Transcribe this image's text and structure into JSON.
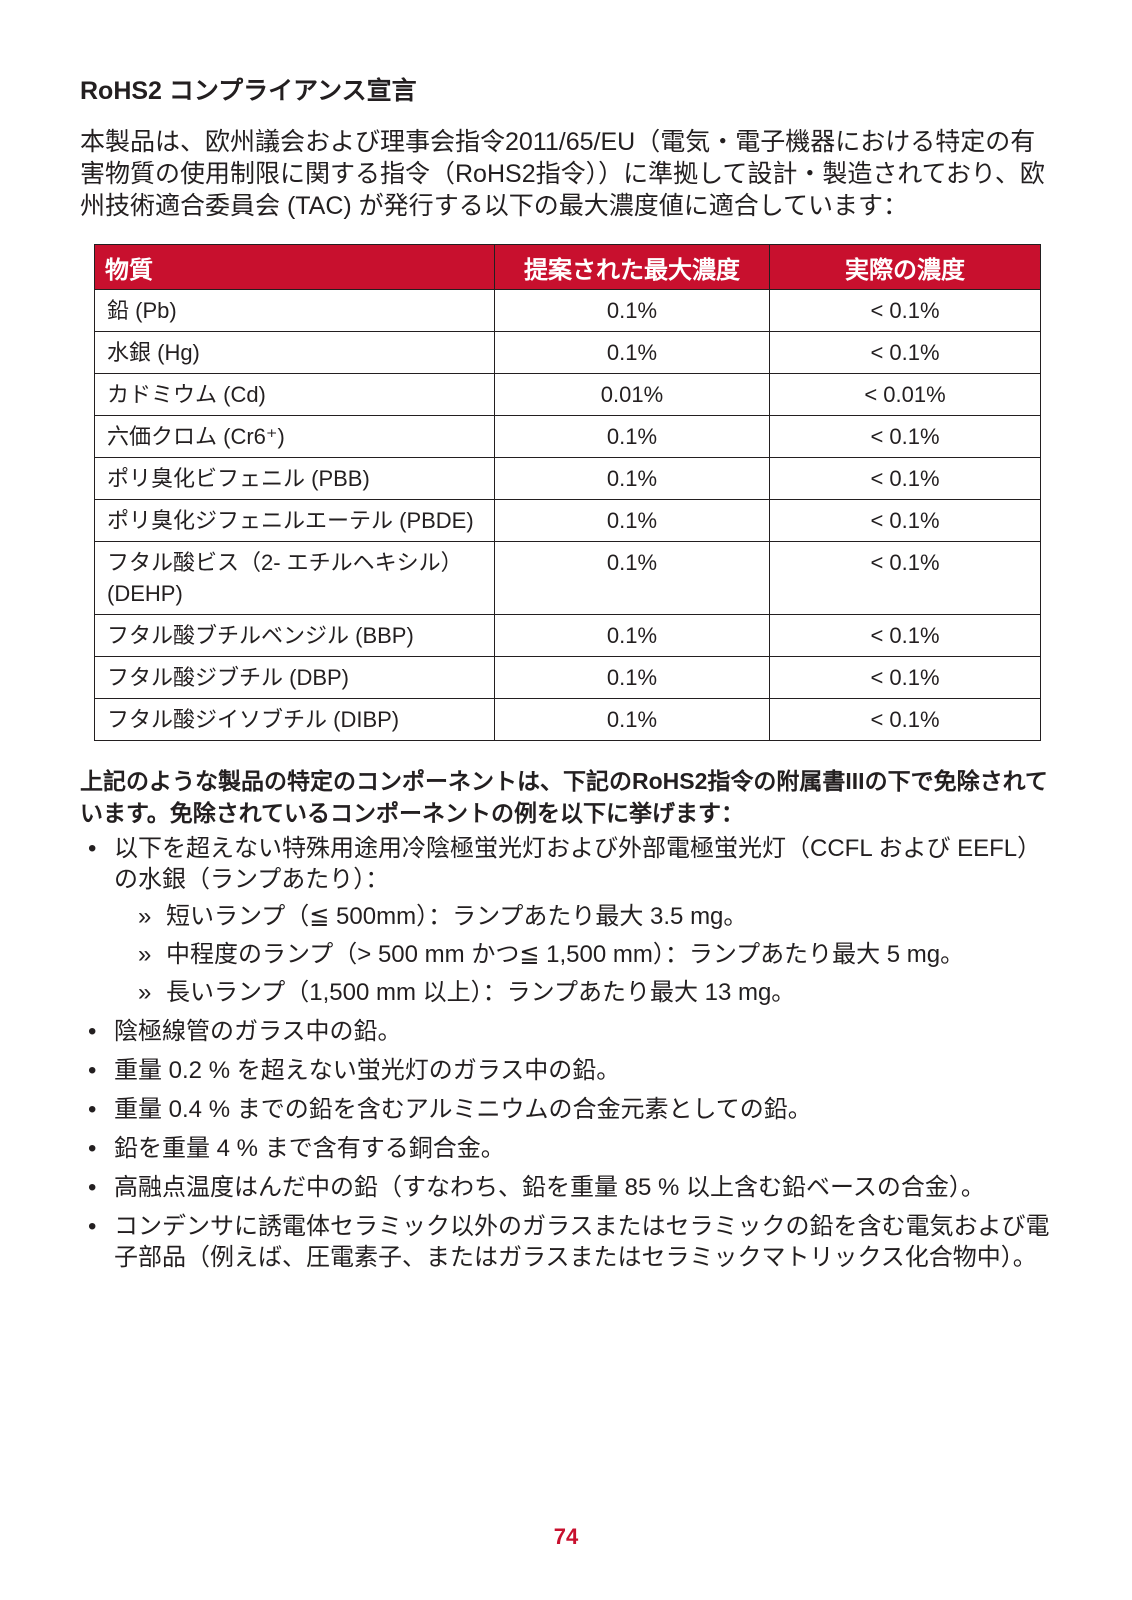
{
  "heading": "RoHS2 コンプライアンス宣言",
  "intro": "本製品は、欧州議会および理事会指令2011/65/EU（電気・電子機器における特定の有害物質の使用制限に関する指令（RoHS2指令））に準拠して設計・製造されており、欧州技術適合委員会 (TAC) が発行する以下の最大濃度値に適合しています：",
  "table": {
    "headers": [
      "物質",
      "提案された最大濃度",
      "実際の濃度"
    ],
    "rows": [
      {
        "substance": "鉛 (Pb)",
        "proposed": "0.1%",
        "actual": "< 0.1%"
      },
      {
        "substance": "水銀 (Hg)",
        "proposed": "0.1%",
        "actual": "< 0.1%"
      },
      {
        "substance": "カドミウム (Cd)",
        "proposed": "0.01%",
        "actual": "< 0.01%"
      },
      {
        "substance": "六価クロム (Cr6⁺)",
        "proposed": "0.1%",
        "actual": "< 0.1%"
      },
      {
        "substance": "ポリ臭化ビフェニル (PBB)",
        "proposed": "0.1%",
        "actual": "< 0.1%"
      },
      {
        "substance": "ポリ臭化ジフェニルエーテル (PBDE)",
        "proposed": "0.1%",
        "actual": "< 0.1%"
      },
      {
        "substance": "フタル酸ビス（2- エチルヘキシル） (DEHP)",
        "proposed": "0.1%",
        "actual": "< 0.1%"
      },
      {
        "substance": "フタル酸ブチルベンジル (BBP)",
        "proposed": "0.1%",
        "actual": "< 0.1%"
      },
      {
        "substance": "フタル酸ジブチル (DBP)",
        "proposed": "0.1%",
        "actual": "< 0.1%"
      },
      {
        "substance": "フタル酸ジイソブチル (DIBP)",
        "proposed": "0.1%",
        "actual": "< 0.1%"
      }
    ]
  },
  "exemption_note": "上記のような製品の特定のコンポーネントは、下記のRoHS2指令の附属書IIIの下で免除されています。免除されているコンポーネントの例を以下に挙げます：",
  "bullet_char": "•",
  "sub_mark": "»",
  "exemptions": {
    "item1": "以下を超えない特殊用途用冷陰極蛍光灯および外部電極蛍光灯（CCFL および EEFL）の水銀（ランプあたり）：",
    "item1_sub": [
      "短いランプ（≦ 500mm）：ランプあたり最大 3.5 mg。",
      "中程度のランプ（> 500 mm かつ≦ 1,500 mm）：ランプあたり最大 5 mg。",
      "長いランプ（1,500 mm 以上）：ランプあたり最大 13 mg。"
    ],
    "item2": "陰極線管のガラス中の鉛。",
    "item3": "重量 0.2 % を超えない蛍光灯のガラス中の鉛。",
    "item4": "重量 0.4 % までの鉛を含むアルミニウムの合金元素としての鉛。",
    "item5": "鉛を重量 4 % まで含有する銅合金。",
    "item6": "高融点温度はんだ中の鉛（すなわち、鉛を重量 85 % 以上含む鉛ベースの合金）。",
    "item7": "コンデンサに誘電体セラミック以外のガラスまたはセラミックの鉛を含む電気および電子部品（例えば、圧電素子、またはガラスまたはセラミックマトリックス化合物中）。"
  },
  "page_number": "74",
  "colors": {
    "accent": "#c8102e",
    "text": "#231f20"
  }
}
